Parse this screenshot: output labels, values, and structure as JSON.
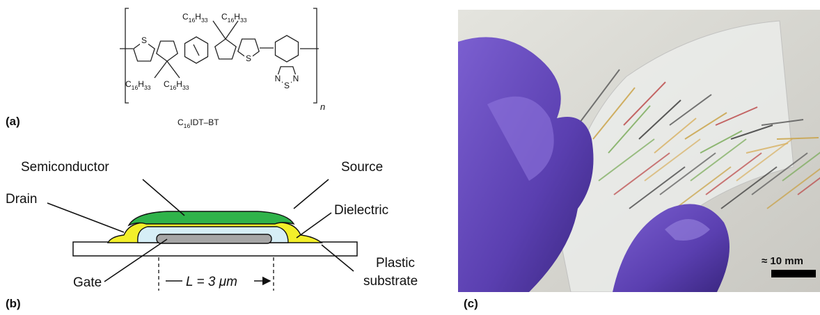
{
  "panel_a": {
    "label": "(a)",
    "substituents": [
      "C16H33",
      "C16H33",
      "C16H33",
      "C16H33"
    ],
    "atoms": [
      "S",
      "S",
      "N",
      "S",
      "N"
    ],
    "repeat_index": "n",
    "name": "C16IDT–BT"
  },
  "panel_b": {
    "label": "(b)",
    "semiconductor": "Semiconductor",
    "source": "Source",
    "drain": "Drain",
    "dielectric": "Dielectric",
    "gate": "Gate",
    "substrate": [
      "Plastic",
      "substrate"
    ],
    "channel_length": "L = 3 μm"
  },
  "panel_c": {
    "label": "(c)",
    "scale_bar": "≈ 10 mm"
  }
}
